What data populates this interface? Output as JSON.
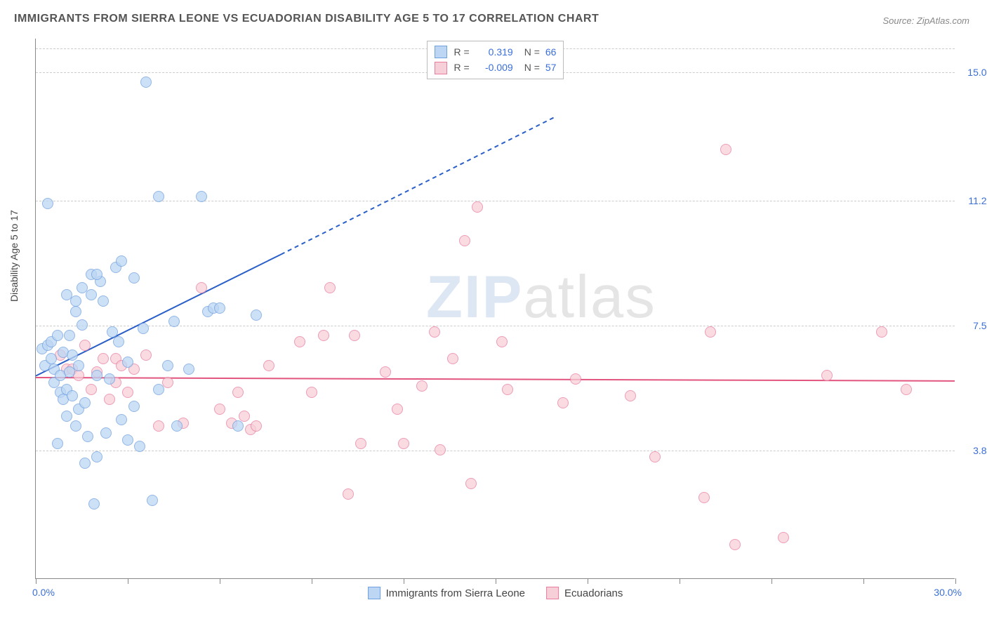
{
  "title": "IMMIGRANTS FROM SIERRA LEONE VS ECUADORIAN DISABILITY AGE 5 TO 17 CORRELATION CHART",
  "source": "Source: ZipAtlas.com",
  "ylabel": "Disability Age 5 to 17",
  "chart": {
    "type": "scatter",
    "background_color": "#ffffff",
    "grid_color": "#cccccc",
    "axis_color": "#888888",
    "xlim": [
      0,
      30
    ],
    "ylim": [
      0,
      16
    ],
    "xticks_pct": [
      0,
      10,
      20,
      30,
      40,
      50,
      60,
      70,
      80,
      90,
      100
    ],
    "x_min_label": "0.0%",
    "x_max_label": "30.0%",
    "y_gridlines": [
      {
        "value": 3.8,
        "label": "3.8%"
      },
      {
        "value": 7.5,
        "label": "7.5%"
      },
      {
        "value": 11.2,
        "label": "11.2%"
      },
      {
        "value": 15.0,
        "label": "15.0%"
      },
      {
        "value": 15.7,
        "label": ""
      }
    ],
    "ytick_color": "#3a6fd8",
    "watermark_bold": "ZIP",
    "watermark_light": "atlas",
    "marker_radius": 8,
    "marker_opacity": 0.75
  },
  "legend_top": {
    "rows": [
      {
        "swatch_fill": "#bcd6f3",
        "swatch_border": "#6fa0e0",
        "r_label": "R =",
        "r_value": "0.319",
        "n_label": "N =",
        "n_value": "66",
        "r_color": "#3a6fd8"
      },
      {
        "swatch_fill": "#f7cfd8",
        "swatch_border": "#e87da0",
        "r_label": "R =",
        "r_value": "-0.009",
        "n_label": "N =",
        "n_value": "57",
        "r_color": "#3a6fd8"
      }
    ]
  },
  "legend_bottom": {
    "items": [
      {
        "swatch_fill": "#bcd6f3",
        "swatch_border": "#6fa0e0",
        "label": "Immigrants from Sierra Leone"
      },
      {
        "swatch_fill": "#f7cfd8",
        "swatch_border": "#e87da0",
        "label": "Ecuadorians"
      }
    ]
  },
  "series": {
    "blue": {
      "fill": "#bcd6f3",
      "stroke": "#6fa0e0",
      "trend": {
        "color": "#2a5fc8",
        "width": 2,
        "x1": 0,
        "y1": 6.0,
        "x2_solid": 8.0,
        "y2_solid": 9.6,
        "x2_dash": 17.0,
        "y2_dash": 13.7
      },
      "points": [
        {
          "x": 0.2,
          "y": 6.8
        },
        {
          "x": 0.3,
          "y": 6.3
        },
        {
          "x": 0.4,
          "y": 6.9
        },
        {
          "x": 0.5,
          "y": 6.5
        },
        {
          "x": 0.5,
          "y": 7.0
        },
        {
          "x": 0.6,
          "y": 5.8
        },
        {
          "x": 0.6,
          "y": 6.2
        },
        {
          "x": 0.7,
          "y": 7.2
        },
        {
          "x": 0.8,
          "y": 5.5
        },
        {
          "x": 0.8,
          "y": 6.0
        },
        {
          "x": 0.9,
          "y": 5.3
        },
        {
          "x": 0.9,
          "y": 6.7
        },
        {
          "x": 1.0,
          "y": 4.8
        },
        {
          "x": 1.0,
          "y": 5.6
        },
        {
          "x": 1.1,
          "y": 6.1
        },
        {
          "x": 1.1,
          "y": 7.2
        },
        {
          "x": 1.2,
          "y": 5.4
        },
        {
          "x": 1.2,
          "y": 6.6
        },
        {
          "x": 1.3,
          "y": 4.5
        },
        {
          "x": 1.3,
          "y": 8.2
        },
        {
          "x": 1.4,
          "y": 5.0
        },
        {
          "x": 1.4,
          "y": 6.3
        },
        {
          "x": 1.5,
          "y": 7.5
        },
        {
          "x": 1.5,
          "y": 8.6
        },
        {
          "x": 1.6,
          "y": 3.4
        },
        {
          "x": 1.6,
          "y": 5.2
        },
        {
          "x": 1.7,
          "y": 4.2
        },
        {
          "x": 1.8,
          "y": 9.0
        },
        {
          "x": 1.8,
          "y": 8.4
        },
        {
          "x": 1.9,
          "y": 2.2
        },
        {
          "x": 2.0,
          "y": 3.6
        },
        {
          "x": 2.0,
          "y": 6.0
        },
        {
          "x": 2.1,
          "y": 8.8
        },
        {
          "x": 2.2,
          "y": 8.2
        },
        {
          "x": 2.3,
          "y": 4.3
        },
        {
          "x": 2.4,
          "y": 5.9
        },
        {
          "x": 2.5,
          "y": 7.3
        },
        {
          "x": 2.6,
          "y": 9.2
        },
        {
          "x": 2.8,
          "y": 9.4
        },
        {
          "x": 2.8,
          "y": 4.7
        },
        {
          "x": 3.0,
          "y": 4.1
        },
        {
          "x": 3.0,
          "y": 6.4
        },
        {
          "x": 3.2,
          "y": 5.1
        },
        {
          "x": 3.2,
          "y": 8.9
        },
        {
          "x": 3.4,
          "y": 3.9
        },
        {
          "x": 3.5,
          "y": 7.4
        },
        {
          "x": 3.6,
          "y": 14.7
        },
        {
          "x": 3.8,
          "y": 2.3
        },
        {
          "x": 4.0,
          "y": 5.6
        },
        {
          "x": 4.0,
          "y": 11.3
        },
        {
          "x": 4.3,
          "y": 6.3
        },
        {
          "x": 4.5,
          "y": 7.6
        },
        {
          "x": 4.6,
          "y": 4.5
        },
        {
          "x": 5.0,
          "y": 6.2
        },
        {
          "x": 5.4,
          "y": 11.3
        },
        {
          "x": 5.6,
          "y": 7.9
        },
        {
          "x": 5.8,
          "y": 8.0
        },
        {
          "x": 6.0,
          "y": 8.0
        },
        {
          "x": 6.6,
          "y": 4.5
        },
        {
          "x": 7.2,
          "y": 7.8
        },
        {
          "x": 0.4,
          "y": 11.1
        },
        {
          "x": 1.3,
          "y": 7.9
        },
        {
          "x": 0.7,
          "y": 4.0
        },
        {
          "x": 2.7,
          "y": 7.0
        },
        {
          "x": 1.0,
          "y": 8.4
        },
        {
          "x": 2.0,
          "y": 9.0
        }
      ]
    },
    "pink": {
      "fill": "#f7cfd8",
      "stroke": "#e87da0",
      "trend": {
        "color": "#e2557f",
        "width": 2,
        "x1": 0,
        "y1": 5.95,
        "x2": 30,
        "y2": 5.85
      },
      "points": [
        {
          "x": 0.8,
          "y": 6.6
        },
        {
          "x": 1.0,
          "y": 6.2
        },
        {
          "x": 1.2,
          "y": 6.2
        },
        {
          "x": 1.4,
          "y": 6.0
        },
        {
          "x": 1.6,
          "y": 6.9
        },
        {
          "x": 1.8,
          "y": 5.6
        },
        {
          "x": 2.0,
          "y": 6.1
        },
        {
          "x": 2.2,
          "y": 6.5
        },
        {
          "x": 2.4,
          "y": 5.3
        },
        {
          "x": 2.6,
          "y": 5.8
        },
        {
          "x": 2.6,
          "y": 6.5
        },
        {
          "x": 2.8,
          "y": 6.3
        },
        {
          "x": 3.0,
          "y": 5.5
        },
        {
          "x": 3.2,
          "y": 6.2
        },
        {
          "x": 3.6,
          "y": 6.6
        },
        {
          "x": 4.0,
          "y": 4.5
        },
        {
          "x": 4.3,
          "y": 5.8
        },
        {
          "x": 4.8,
          "y": 4.6
        },
        {
          "x": 5.4,
          "y": 8.6
        },
        {
          "x": 6.0,
          "y": 5.0
        },
        {
          "x": 6.4,
          "y": 4.6
        },
        {
          "x": 6.6,
          "y": 5.5
        },
        {
          "x": 6.8,
          "y": 4.8
        },
        {
          "x": 7.0,
          "y": 4.4
        },
        {
          "x": 7.2,
          "y": 4.5
        },
        {
          "x": 8.6,
          "y": 7.0
        },
        {
          "x": 9.0,
          "y": 5.5
        },
        {
          "x": 9.4,
          "y": 7.2
        },
        {
          "x": 9.6,
          "y": 8.6
        },
        {
          "x": 10.2,
          "y": 2.5
        },
        {
          "x": 10.4,
          "y": 7.2
        },
        {
          "x": 10.6,
          "y": 4.0
        },
        {
          "x": 11.4,
          "y": 6.1
        },
        {
          "x": 11.8,
          "y": 5.0
        },
        {
          "x": 12.0,
          "y": 4.0
        },
        {
          "x": 12.6,
          "y": 5.7
        },
        {
          "x": 13.0,
          "y": 7.3
        },
        {
          "x": 13.2,
          "y": 3.8
        },
        {
          "x": 13.6,
          "y": 6.5
        },
        {
          "x": 14.0,
          "y": 10.0
        },
        {
          "x": 14.2,
          "y": 2.8
        },
        {
          "x": 14.4,
          "y": 11.0
        },
        {
          "x": 15.2,
          "y": 7.0
        },
        {
          "x": 15.4,
          "y": 5.6
        },
        {
          "x": 17.2,
          "y": 5.2
        },
        {
          "x": 17.6,
          "y": 5.9
        },
        {
          "x": 19.4,
          "y": 5.4
        },
        {
          "x": 20.2,
          "y": 3.6
        },
        {
          "x": 21.8,
          "y": 2.4
        },
        {
          "x": 22.0,
          "y": 7.3
        },
        {
          "x": 22.5,
          "y": 12.7
        },
        {
          "x": 22.8,
          "y": 1.0
        },
        {
          "x": 24.4,
          "y": 1.2
        },
        {
          "x": 25.8,
          "y": 6.0
        },
        {
          "x": 27.6,
          "y": 7.3
        },
        {
          "x": 28.4,
          "y": 5.6
        },
        {
          "x": 7.6,
          "y": 6.3
        }
      ]
    }
  }
}
